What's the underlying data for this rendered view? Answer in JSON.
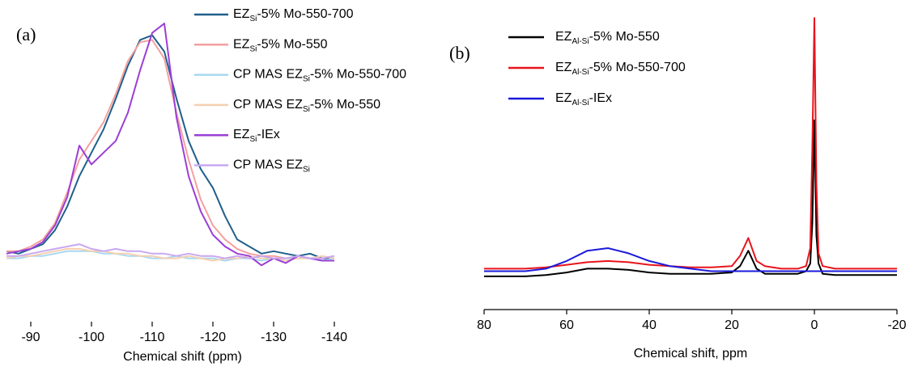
{
  "chart_data": [
    {
      "type": "line",
      "panel_label": "(a)",
      "xlabel": "Chemical shift (ppm)",
      "x": [
        -86,
        -88,
        -90,
        -92,
        -94,
        -96,
        -98,
        -100,
        -102,
        -104,
        -106,
        -108,
        -110,
        -112,
        -114,
        -116,
        -118,
        -120,
        -122,
        -124,
        -126,
        -128,
        -130,
        -132,
        -134,
        -136,
        -138,
        -140
      ],
      "xlim": [
        -86,
        -140
      ],
      "xticks": [
        -90,
        -100,
        -110,
        -120,
        -130,
        -140
      ],
      "ylim": [
        -27,
        110
      ],
      "series": [
        {
          "name": [
            "EZ",
            "Si",
            "-5% Mo-550-700"
          ],
          "color": "#1f5f8b",
          "values": [
            3,
            2,
            4,
            6,
            12,
            22,
            35,
            45,
            55,
            68,
            82,
            93,
            95,
            88,
            68,
            50,
            38,
            30,
            18,
            8,
            5,
            2,
            3,
            2,
            1,
            2,
            0,
            0
          ]
        },
        {
          "name": [
            "EZ",
            "Si",
            "-5% Mo-550"
          ],
          "color": "#f4a0a0",
          "values": [
            3,
            3,
            5,
            8,
            15,
            28,
            42,
            50,
            58,
            70,
            84,
            92,
            93,
            85,
            62,
            42,
            25,
            14,
            8,
            4,
            2,
            1,
            1,
            0,
            1,
            0,
            0,
            1
          ]
        },
        {
          "name": [
            "CP MAS EZ",
            "Si",
            "-5% Mo-550-700"
          ],
          "color": "#a8d8f0",
          "values": [
            0,
            0,
            1,
            1,
            2,
            3,
            3,
            3,
            2,
            2,
            1,
            1,
            0,
            0,
            1,
            0,
            0,
            0,
            -1,
            0,
            0,
            -1,
            0,
            0,
            0,
            0,
            -1,
            0
          ]
        },
        {
          "name": [
            "CP MAS EZ",
            "Si",
            "-5% Mo-550"
          ],
          "color": "#f5d0b0",
          "values": [
            0,
            1,
            1,
            2,
            3,
            4,
            4,
            3,
            3,
            2,
            2,
            1,
            1,
            0,
            0,
            1,
            0,
            -1,
            0,
            0,
            1,
            0,
            0,
            -1,
            0,
            0,
            1,
            0
          ]
        },
        {
          "name": [
            "EZ",
            "Si",
            "-IEx"
          ],
          "color": "#9b3fd6",
          "values": [
            2,
            3,
            4,
            7,
            14,
            26,
            48,
            40,
            45,
            50,
            62,
            80,
            96,
            100,
            60,
            35,
            20,
            10,
            5,
            2,
            1,
            -3,
            0,
            -2,
            1,
            0,
            -1,
            -1
          ]
        },
        {
          "name": [
            "CP MAS EZ",
            "Si"
          ],
          "color": "#c8a8f0",
          "values": [
            1,
            1,
            2,
            3,
            4,
            5,
            6,
            4,
            3,
            4,
            3,
            3,
            2,
            2,
            1,
            2,
            1,
            1,
            0,
            1,
            0,
            1,
            0,
            0,
            1,
            0,
            0,
            1
          ]
        }
      ]
    },
    {
      "type": "line",
      "panel_label": "(b)",
      "xlabel": "Chemical shift, ppm",
      "x": [
        80,
        75,
        70,
        65,
        60,
        55,
        50,
        45,
        40,
        35,
        30,
        25,
        20,
        18,
        16,
        14,
        12,
        8,
        4,
        2,
        1,
        0.5,
        0,
        -0.5,
        -1,
        -2,
        -5,
        -10,
        -15,
        -20
      ],
      "xlim": [
        80,
        -20
      ],
      "xticks": [
        80,
        60,
        40,
        20,
        0,
        -20
      ],
      "ylim": [
        -14,
        107
      ],
      "series": [
        {
          "name": [
            "EZ",
            "Al-Si",
            "-5% Mo-550"
          ],
          "color": "#000000",
          "values": [
            -1,
            -1,
            -1,
            -0.5,
            0.5,
            2,
            2,
            1.5,
            0.5,
            0,
            0,
            0,
            0.5,
            3,
            9,
            2,
            0,
            0,
            0,
            1,
            4,
            20,
            60,
            15,
            4,
            0,
            -0.5,
            -0.5,
            -0.5,
            -0.5
          ]
        },
        {
          "name": [
            "EZ",
            "Al-Si",
            "-5% Mo-550-700"
          ],
          "color": "#e8141c",
          "values": [
            2,
            2,
            2,
            2.5,
            3.5,
            4.5,
            5,
            4.5,
            3.5,
            3,
            2.5,
            2.5,
            3,
            7,
            14,
            5,
            3,
            2,
            2,
            3,
            10,
            50,
            100,
            35,
            8,
            3,
            2,
            2,
            2,
            2
          ]
        },
        {
          "name": [
            "EZ",
            "Al-Si",
            "-IEx"
          ],
          "color": "#1a1adc",
          "values": [
            1,
            1,
            1,
            2,
            5,
            9,
            10,
            8,
            5,
            3,
            2,
            1,
            1,
            1,
            1,
            1,
            1,
            1,
            1,
            1,
            1,
            1,
            1,
            1,
            1,
            1,
            1,
            1,
            1,
            1
          ]
        }
      ]
    }
  ]
}
